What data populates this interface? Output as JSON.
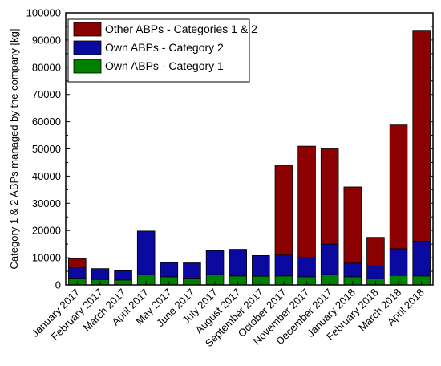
{
  "chart_data": {
    "type": "bar",
    "stacked": true,
    "ylabel": "Category 1 & 2 ABPs managed by the company [kg]",
    "xlabel": "",
    "ylim": [
      0,
      100000
    ],
    "yticks": [
      0,
      10000,
      20000,
      30000,
      40000,
      50000,
      60000,
      70000,
      80000,
      90000,
      100000
    ],
    "categories": [
      "January 2017",
      "February 2017",
      "March 2017",
      "April 2017",
      "May 2017",
      "June 2017",
      "July 2017",
      "August 2017",
      "September 2017",
      "October 2017",
      "November 2017",
      "December 2017",
      "January 2018",
      "February 2018",
      "March 2018",
      "April 2018"
    ],
    "series": [
      {
        "name": "Own ABPs - Category 1",
        "color": "#008000",
        "values": [
          2500,
          2000,
          1800,
          3800,
          3000,
          2500,
          3800,
          3300,
          3200,
          3300,
          3000,
          3800,
          3000,
          2300,
          3500,
          3300
        ]
      },
      {
        "name": "Own ABPs - Category 2",
        "color": "#0a0aa0",
        "values": [
          3800,
          4000,
          3400,
          16000,
          5200,
          5600,
          8800,
          9500,
          7600,
          7700,
          7000,
          11200,
          5000,
          4700,
          9800,
          12800
        ]
      },
      {
        "name": "Other ABPs - Categories 1 & 2",
        "color": "#8b0000",
        "values": [
          3400,
          0,
          0,
          0,
          0,
          0,
          0,
          300,
          0,
          33000,
          41000,
          35000,
          28000,
          10500,
          45500,
          77500
        ]
      }
    ],
    "legend_position": "top-left",
    "grid": false
  }
}
